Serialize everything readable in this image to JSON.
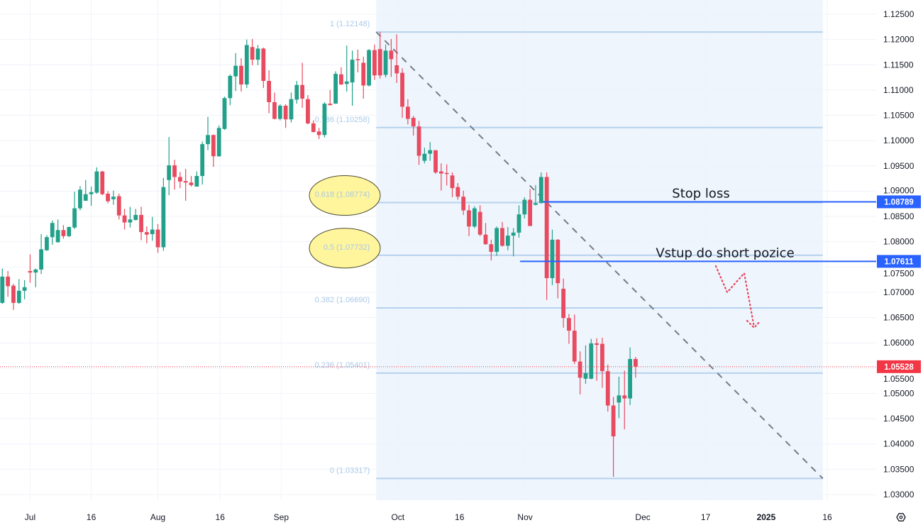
{
  "chart_data": {
    "type": "candlestick",
    "symbol_hint": "",
    "x_unit": "trading-day bar index (bar 5 = Jul 1)",
    "x_ticks": [
      {
        "label": "Jul",
        "bar": 5,
        "bold": false
      },
      {
        "label": "16",
        "bar": 16,
        "bold": false
      },
      {
        "label": "Aug",
        "bar": 28,
        "bold": false
      },
      {
        "label": "16",
        "bar": 39.2,
        "bold": false
      },
      {
        "label": "Sep",
        "bar": 50.2,
        "bold": false
      },
      {
        "label": "Oct",
        "bar": 71.2,
        "bold": false
      },
      {
        "label": "16",
        "bar": 82.3,
        "bold": false
      },
      {
        "label": "Nov",
        "bar": 94.1,
        "bold": false
      },
      {
        "label": "Dec",
        "bar": 115.3,
        "bold": false
      },
      {
        "label": "17",
        "bar": 126.6,
        "bold": false
      },
      {
        "label": "2025",
        "bar": 137.5,
        "bold": true
      },
      {
        "label": "16",
        "bar": 148.5,
        "bold": false
      }
    ],
    "y_ticks": [
      "1.03000",
      "1.03500",
      "1.04000",
      "1.04500",
      "1.05000",
      "1.05500",
      "1.06000",
      "1.06500",
      "1.07000",
      "1.07500",
      "1.08000",
      "1.08500",
      "1.09000",
      "1.09500",
      "1.10000",
      "1.10500",
      "1.11000",
      "1.11500",
      "1.12000",
      "1.12500"
    ],
    "ylim": [
      1.0265,
      1.1278
    ],
    "grid": true,
    "colors": {
      "up": "#22a08a",
      "down": "#e84a5f",
      "fib_line": "#b6d2ec",
      "fib_zone": "#eef5fd",
      "level_line": "#2962ff",
      "current": "#f23645",
      "trend": "#787b86",
      "ellipse": "#fff59d",
      "arrow": "#e84a5f"
    },
    "ohlc": [
      [
        1.0679,
        1.0747,
        1.0677,
        1.0731
      ],
      [
        1.0731,
        1.0742,
        1.0691,
        1.0712
      ],
      [
        1.0713,
        1.0717,
        1.0665,
        1.0679
      ],
      [
        1.0679,
        1.0726,
        1.0677,
        1.0703
      ],
      [
        1.0703,
        1.0724,
        1.0686,
        1.071
      ],
      [
        1.0742,
        1.0775,
        1.0719,
        1.0739
      ],
      [
        1.0739,
        1.0747,
        1.071,
        1.0745
      ],
      [
        1.0745,
        1.0815,
        1.0736,
        1.0785
      ],
      [
        1.0783,
        1.0813,
        1.0782,
        1.0809
      ],
      [
        1.0809,
        1.0842,
        1.0794,
        1.0837
      ],
      [
        1.0799,
        1.0844,
        1.0798,
        1.0823
      ],
      [
        1.0823,
        1.0833,
        1.0806,
        1.0811
      ],
      [
        1.0811,
        1.083,
        1.0809,
        1.0829
      ],
      [
        1.0828,
        1.0899,
        1.0825,
        1.0866
      ],
      [
        1.0866,
        1.091,
        1.0862,
        1.0903
      ],
      [
        1.0881,
        1.0922,
        1.0881,
        1.0894
      ],
      [
        1.0894,
        1.0909,
        1.0871,
        1.0898
      ],
      [
        1.0897,
        1.0947,
        1.0895,
        1.0939
      ],
      [
        1.0939,
        1.094,
        1.0892,
        1.0894
      ],
      [
        1.0895,
        1.09,
        1.0876,
        1.088
      ],
      [
        1.0884,
        1.0901,
        1.0873,
        1.0889
      ],
      [
        1.089,
        1.0895,
        1.0844,
        1.0852
      ],
      [
        1.0852,
        1.0865,
        1.0824,
        1.0838
      ],
      [
        1.0838,
        1.0869,
        1.0828,
        1.0844
      ],
      [
        1.0843,
        1.0865,
        1.0842,
        1.0853
      ],
      [
        1.0853,
        1.0869,
        1.0803,
        1.0819
      ],
      [
        1.0819,
        1.083,
        1.0797,
        1.0814
      ],
      [
        1.0815,
        1.0849,
        1.0802,
        1.0824
      ],
      [
        1.0824,
        1.0835,
        1.0778,
        1.0789
      ],
      [
        1.0789,
        1.0926,
        1.0782,
        1.0908
      ],
      [
        1.0922,
        1.1007,
        1.0892,
        1.0951
      ],
      [
        1.0951,
        1.0962,
        1.0903,
        1.0928
      ],
      [
        1.0928,
        1.0938,
        1.0906,
        1.0919
      ],
      [
        1.092,
        1.0944,
        1.0881,
        1.0917
      ],
      [
        1.0917,
        1.093,
        1.0909,
        1.0912
      ],
      [
        1.0909,
        1.0939,
        1.0909,
        1.093
      ],
      [
        1.093,
        1.0998,
        1.0913,
        1.0993
      ],
      [
        1.0993,
        1.1047,
        1.0981,
        1.1011
      ],
      [
        1.1011,
        1.1012,
        1.0948,
        1.0969
      ],
      [
        1.0969,
        1.103,
        1.0968,
        1.1025
      ],
      [
        1.1023,
        1.1087,
        1.1021,
        1.1084
      ],
      [
        1.1084,
        1.1131,
        1.107,
        1.1128
      ],
      [
        1.1127,
        1.1173,
        1.1098,
        1.1148
      ],
      [
        1.1148,
        1.1163,
        1.1097,
        1.1111
      ],
      [
        1.1111,
        1.12,
        1.1104,
        1.1189
      ],
      [
        1.1185,
        1.1201,
        1.1149,
        1.116
      ],
      [
        1.116,
        1.1189,
        1.1149,
        1.1182
      ],
      [
        1.1182,
        1.1184,
        1.1104,
        1.1118
      ],
      [
        1.1118,
        1.1139,
        1.1054,
        1.1076
      ],
      [
        1.1076,
        1.1095,
        1.1042,
        1.1043
      ],
      [
        1.1043,
        1.1072,
        1.104,
        1.1069
      ],
      [
        1.1069,
        1.1072,
        1.1025,
        1.1042
      ],
      [
        1.1042,
        1.1095,
        1.1036,
        1.1082
      ],
      [
        1.1081,
        1.1118,
        1.1073,
        1.111
      ],
      [
        1.111,
        1.1154,
        1.1065,
        1.1083
      ],
      [
        1.1082,
        1.109,
        1.1032,
        1.1034
      ],
      [
        1.1034,
        1.104,
        1.1016,
        1.1017
      ],
      [
        1.1018,
        1.1025,
        1.1003,
        1.1011
      ],
      [
        1.1011,
        1.1076,
        1.1006,
        1.1073
      ],
      [
        1.1073,
        1.11,
        1.107,
        1.107
      ],
      [
        1.1073,
        1.1137,
        1.1073,
        1.1132
      ],
      [
        1.1131,
        1.1145,
        1.111,
        1.1111
      ],
      [
        1.1112,
        1.1188,
        1.1097,
        1.1117
      ],
      [
        1.1115,
        1.1178,
        1.1069,
        1.116
      ],
      [
        1.1161,
        1.118,
        1.1135,
        1.116
      ],
      [
        1.1154,
        1.1166,
        1.1083,
        1.1109
      ],
      [
        1.1109,
        1.1181,
        1.1107,
        1.1179
      ],
      [
        1.1179,
        1.119,
        1.112,
        1.1129
      ],
      [
        1.1181,
        1.1215,
        1.1123,
        1.1129
      ],
      [
        1.113,
        1.119,
        1.1125,
        1.1178
      ],
      [
        1.1178,
        1.1201,
        1.1126,
        1.1161
      ],
      [
        1.1149,
        1.121,
        1.1114,
        1.1133
      ],
      [
        1.1134,
        1.1143,
        1.1045,
        1.1067
      ],
      [
        1.1067,
        1.1082,
        1.1032,
        1.1043
      ],
      [
        1.1045,
        1.1049,
        1.101,
        1.1028
      ],
      [
        1.1028,
        1.1039,
        1.0952,
        1.097
      ],
      [
        1.096,
        1.0986,
        1.0955,
        1.0974
      ],
      [
        1.0974,
        1.0997,
        1.096,
        1.0981
      ],
      [
        1.0981,
        1.0981,
        1.0934,
        1.0937
      ],
      [
        1.0939,
        1.0955,
        1.0901,
        1.0935
      ],
      [
        1.0936,
        1.0953,
        1.0911,
        1.0934
      ],
      [
        1.0931,
        1.0937,
        1.0888,
        1.0906
      ],
      [
        1.0908,
        1.0916,
        1.0883,
        1.0889
      ],
      [
        1.0889,
        1.0901,
        1.0853,
        1.0862
      ],
      [
        1.0862,
        1.0873,
        1.0811,
        1.083
      ],
      [
        1.083,
        1.087,
        1.0827,
        1.0866
      ],
      [
        1.0859,
        1.0872,
        1.0811,
        1.0814
      ],
      [
        1.0814,
        1.0837,
        1.0794,
        1.0795
      ],
      [
        1.0795,
        1.0804,
        1.0763,
        1.078
      ],
      [
        1.078,
        1.083,
        1.0772,
        1.0827
      ],
      [
        1.0827,
        1.0839,
        1.079,
        1.0792
      ],
      [
        1.0792,
        1.0829,
        1.0783,
        1.0812
      ],
      [
        1.0812,
        1.0827,
        1.0771,
        1.0818
      ],
      [
        1.0818,
        1.0872,
        1.0808,
        1.0854
      ],
      [
        1.0854,
        1.0888,
        1.0846,
        1.0883
      ],
      [
        1.0883,
        1.0904,
        1.0831,
        1.0831
      ],
      [
        1.0873,
        1.0912,
        1.0872,
        1.0876
      ],
      [
        1.0877,
        1.0937,
        1.0875,
        1.0928
      ],
      [
        1.0928,
        1.0937,
        1.0685,
        1.0728
      ],
      [
        1.0728,
        1.0824,
        1.0714,
        1.0804
      ],
      [
        1.0804,
        1.0805,
        1.0688,
        1.0718
      ],
      [
        1.0707,
        1.0727,
        1.063,
        1.0649
      ],
      [
        1.0649,
        1.0657,
        1.0598,
        1.0624
      ],
      [
        1.0624,
        1.0656,
        1.0558,
        1.0563
      ],
      [
        1.0563,
        1.0583,
        1.0498,
        1.0531
      ],
      [
        1.0529,
        1.0595,
        1.0519,
        1.054
      ],
      [
        1.0529,
        1.0608,
        1.0528,
        1.0599
      ],
      [
        1.0599,
        1.0609,
        1.0525,
        1.0596
      ],
      [
        1.0598,
        1.061,
        1.0511,
        1.0544
      ],
      [
        1.0544,
        1.0557,
        1.0464,
        1.0476
      ],
      [
        1.0476,
        1.0493,
        1.0335,
        1.0415
      ],
      [
        1.0482,
        1.0533,
        1.0451,
        1.0496
      ],
      [
        1.0496,
        1.0545,
        1.0429,
        1.049
      ],
      [
        1.049,
        1.0591,
        1.0477,
        1.0568
      ],
      [
        1.0568,
        1.0572,
        1.0531,
        1.0553
      ]
    ],
    "fibonacci": {
      "start_bar": 67.3,
      "end_bar": 147.7,
      "levels": [
        {
          "ratio": "1",
          "price": 1.12148,
          "label": "1 (1.12148)",
          "highlighted": false
        },
        {
          "ratio": "0.786",
          "price": 1.10258,
          "label": "0.786 (1.10258)",
          "highlighted": false
        },
        {
          "ratio": "0.618",
          "price": 1.08774,
          "label": "0.618 (1.08774)",
          "highlighted": true
        },
        {
          "ratio": "0.5",
          "price": 1.07732,
          "label": "0.5 (1.07732)",
          "highlighted": true
        },
        {
          "ratio": "0.382",
          "price": 1.0669,
          "label": "0.382 (1.06690)",
          "highlighted": false
        },
        {
          "ratio": "0.236",
          "price": 1.05401,
          "label": "0.236 (1.05401)",
          "highlighted": false
        },
        {
          "ratio": "0",
          "price": 1.03317,
          "label": "0 (1.03317)",
          "highlighted": false
        }
      ]
    },
    "trend_line": {
      "from": {
        "bar": 67.3,
        "price": 1.12148
      },
      "to": {
        "bar": 147.7,
        "price": 1.03317
      },
      "style": "dashed"
    },
    "horizontal_levels": [
      {
        "name": "stop-loss",
        "price": 1.08789,
        "start_bar": 97.3,
        "tag": "1.08789",
        "label": "Stop loss"
      },
      {
        "name": "entry",
        "price": 1.07611,
        "start_bar": 93.2,
        "tag": "1.07611",
        "label": "Vstup do short pozice"
      }
    ],
    "current_price": {
      "price": 1.05528,
      "tag": "1.05528"
    }
  },
  "settings_icon": "gear-icon"
}
